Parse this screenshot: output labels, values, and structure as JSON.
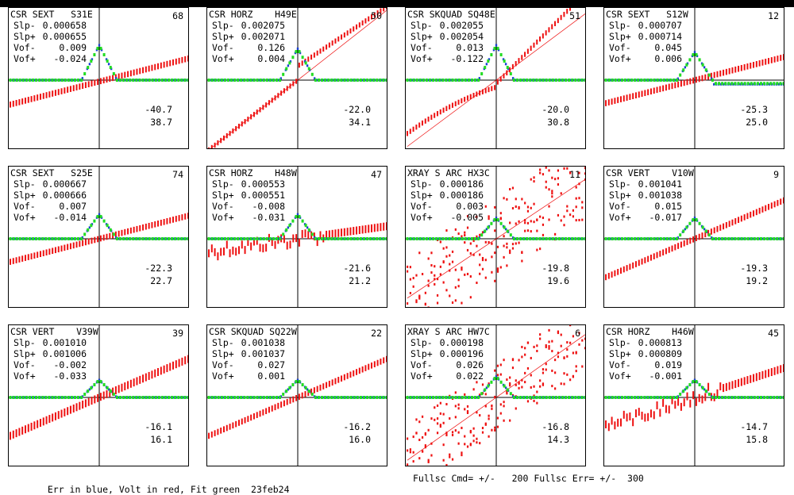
{
  "footer": {
    "legend": "Err in blue, Volt in red, Fit green",
    "date": "23feb24",
    "fullscale": "Fullsc Cmd= +/-   200 Fullsc Err= +/-  300"
  },
  "colors": {
    "err": "#1a3fd6",
    "volt": "#ee1111",
    "fit": "#22dd22",
    "axis": "#000000"
  },
  "labels": {
    "slp_minus": "Slp-",
    "slp_plus": "Slp+",
    "vof_minus": "Vof-",
    "vof_plus": "Vof+"
  },
  "chart_data": [
    {
      "type": "scatter",
      "title": "CSR SEXT   S31E",
      "count": "68",
      "slp_minus": "0.000658",
      "slp_plus": "0.000655",
      "vof_minus": "0.009",
      "vof_plus": "-0.024",
      "lo": "-40.7",
      "hi": "38.7",
      "style": "linear",
      "slope": 0.33,
      "offset": -0.02,
      "spread": 0.03,
      "spike": 0.5,
      "dip": 0.0
    },
    {
      "type": "scatter",
      "title": "CSR HORZ    H49E",
      "count": "50",
      "slp_minus": "0.002075",
      "slp_plus": "0.002071",
      "vof_minus": "0.126",
      "vof_plus": "0.004",
      "lo": "-22.0",
      "hi": "34.1",
      "style": "steep",
      "slope": 1.0,
      "offset": 0.0,
      "spread": 0.02,
      "spike": 0.45,
      "dip": 0.0
    },
    {
      "type": "scatter",
      "title": "CSR SKQUAD SQ48E",
      "count": "51",
      "slp_minus": "0.002055",
      "slp_plus": "0.002054",
      "vof_minus": "0.013",
      "vof_plus": "-0.122",
      "lo": "-20.0",
      "hi": "30.8",
      "style": "skquad",
      "slope": 0.95,
      "offset": 0.0,
      "spread": 0.02,
      "spike": 0.5,
      "dip": 0.0
    },
    {
      "type": "scatter",
      "title": "CSR SEXT   S12W",
      "count": "12",
      "slp_minus": "0.000707",
      "slp_plus": "0.000714",
      "vof_minus": "0.045",
      "vof_plus": "0.006",
      "lo": "-25.3",
      "hi": "25.0",
      "style": "linear",
      "slope": 0.33,
      "offset": 0.0,
      "spread": 0.03,
      "spike": 0.4,
      "dip": 0.06
    },
    {
      "type": "scatter",
      "title": "CSR SEXT   S25E",
      "count": "74",
      "slp_minus": "0.000667",
      "slp_plus": "0.000666",
      "vof_minus": "0.007",
      "vof_plus": "-0.014",
      "lo": "-22.3",
      "hi": "22.7",
      "style": "linear",
      "slope": 0.33,
      "offset": 0.0,
      "spread": 0.03,
      "spike": 0.35,
      "dip": 0.0
    },
    {
      "type": "scatter",
      "title": "CSR HORZ    H48W",
      "count": "47",
      "slp_minus": "0.000553",
      "slp_plus": "0.000551",
      "vof_minus": "-0.008",
      "vof_plus": "-0.031",
      "lo": "-21.6",
      "hi": "21.2",
      "style": "noisy",
      "slope": 0.18,
      "offset": 0.0,
      "spread": 0.05,
      "spike": 0.35,
      "dip": 0.0
    },
    {
      "type": "scatter",
      "title": "XRAY S ARC HX3C",
      "count": "11",
      "slp_minus": "0.000186",
      "slp_plus": "0.000186",
      "vof_minus": "0.003",
      "vof_plus": "-0.005",
      "lo": "-19.8",
      "hi": "19.6",
      "style": "cloud",
      "slope": 0.85,
      "offset": 0.0,
      "spread": 0.6,
      "spike": 0.3,
      "dip": 0.0
    },
    {
      "type": "scatter",
      "title": "CSR VERT    V10W",
      "count": "9",
      "slp_minus": "0.001041",
      "slp_plus": "0.001038",
      "vof_minus": "0.015",
      "vof_plus": "-0.017",
      "lo": "-19.3",
      "hi": "19.2",
      "style": "linear",
      "slope": 0.55,
      "offset": 0.0,
      "spread": 0.03,
      "spike": 0.3,
      "dip": 0.0
    },
    {
      "type": "scatter",
      "title": "CSR VERT    V39W",
      "count": "39",
      "slp_minus": "0.001010",
      "slp_plus": "0.001006",
      "vof_minus": "-0.002",
      "vof_plus": "-0.033",
      "lo": "-16.1",
      "hi": "16.1",
      "style": "linear",
      "slope": 0.55,
      "offset": 0.0,
      "spread": 0.05,
      "spike": 0.25,
      "dip": 0.0
    },
    {
      "type": "scatter",
      "title": "CSR SKQUAD SQ22W",
      "count": "22",
      "slp_minus": "0.001038",
      "slp_plus": "0.001037",
      "vof_minus": "0.027",
      "vof_plus": "0.001",
      "lo": "-16.2",
      "hi": "16.0",
      "style": "linear",
      "slope": 0.55,
      "offset": 0.0,
      "spread": 0.03,
      "spike": 0.25,
      "dip": 0.0
    },
    {
      "type": "scatter",
      "title": "XRAY S ARC HW7C",
      "count": "6",
      "slp_minus": "0.000198",
      "slp_plus": "0.000196",
      "vof_minus": "0.026",
      "vof_plus": "0.022",
      "lo": "-16.8",
      "hi": "14.3",
      "style": "xray2",
      "slope": 0.9,
      "offset": 0.0,
      "spread": 0.5,
      "spike": 0.3,
      "dip": 0.0
    },
    {
      "type": "scatter",
      "title": "CSR HORZ    H46W",
      "count": "45",
      "slp_minus": "0.000813",
      "slp_plus": "0.000809",
      "vof_minus": "0.019",
      "vof_plus": "-0.001",
      "lo": "-14.7",
      "hi": "15.8",
      "style": "noisy",
      "slope": 0.42,
      "offset": 0.0,
      "spread": 0.05,
      "spike": 0.25,
      "dip": 0.0
    }
  ]
}
